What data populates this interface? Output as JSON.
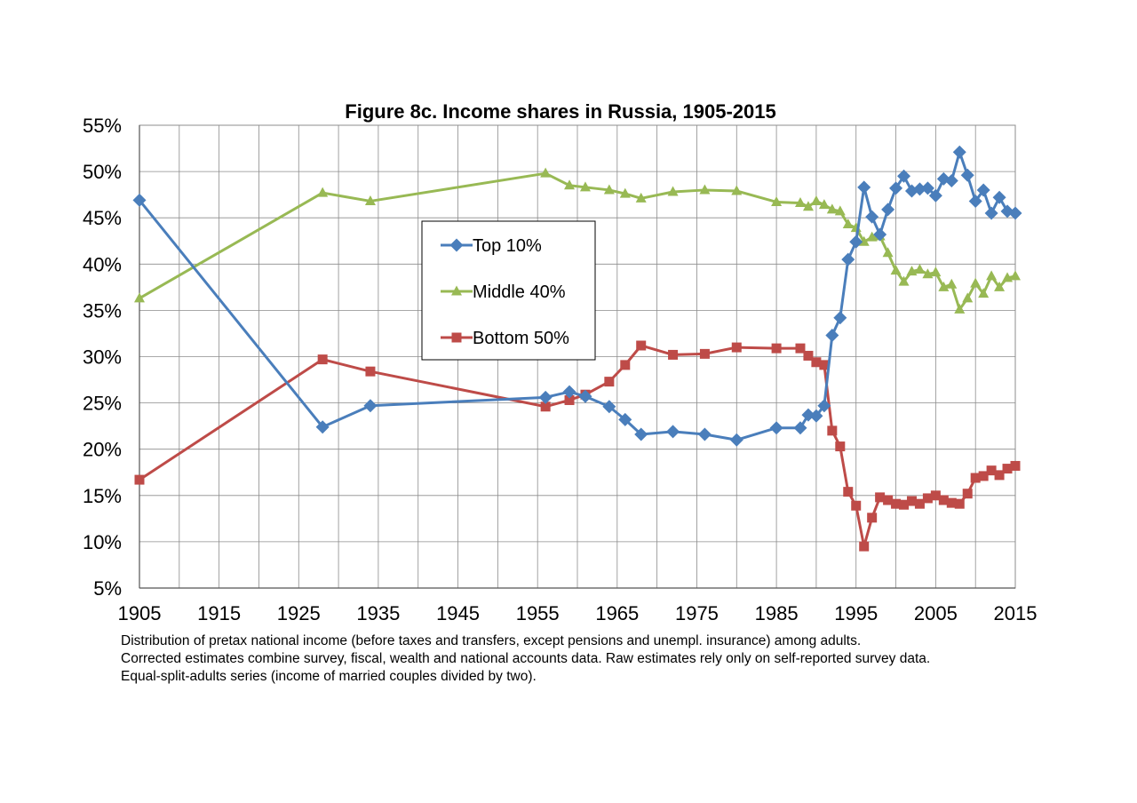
{
  "chart_data": {
    "type": "line",
    "title": "Figure 8c. Income shares in Russia, 1905-2015",
    "xlabel": "",
    "ylabel": "",
    "xlim": [
      1905,
      2015
    ],
    "ylim": [
      5,
      55
    ],
    "x_ticks": [
      "1905",
      "1915",
      "1925",
      "1935",
      "1945",
      "1955",
      "1965",
      "1975",
      "1985",
      "1995",
      "2005",
      "2015"
    ],
    "y_ticks": [
      "5%",
      "10%",
      "15%",
      "20%",
      "25%",
      "30%",
      "35%",
      "40%",
      "45%",
      "50%",
      "55%"
    ],
    "grid": true,
    "legend_position": "center-left",
    "series": [
      {
        "name": "Top 10%",
        "color": "#4a7ebb",
        "marker": "diamond",
        "points": [
          [
            1905,
            46.9
          ],
          [
            1928,
            22.4
          ],
          [
            1934,
            24.7
          ],
          [
            1956,
            25.6
          ],
          [
            1959,
            26.2
          ],
          [
            1961,
            25.7
          ],
          [
            1964,
            24.6
          ],
          [
            1966,
            23.2
          ],
          [
            1968,
            21.6
          ],
          [
            1972,
            21.9
          ],
          [
            1976,
            21.6
          ],
          [
            1980,
            21.0
          ],
          [
            1985,
            22.3
          ],
          [
            1988,
            22.3
          ],
          [
            1989,
            23.7
          ],
          [
            1990,
            23.6
          ],
          [
            1991,
            24.7
          ],
          [
            1992,
            32.3
          ],
          [
            1993,
            34.2
          ],
          [
            1994,
            40.5
          ],
          [
            1995,
            42.4
          ],
          [
            1996,
            48.3
          ],
          [
            1997,
            45.1
          ],
          [
            1998,
            43.2
          ],
          [
            1999,
            45.9
          ],
          [
            2000,
            48.2
          ],
          [
            2001,
            49.5
          ],
          [
            2002,
            47.9
          ],
          [
            2003,
            48.1
          ],
          [
            2004,
            48.2
          ],
          [
            2005,
            47.4
          ],
          [
            2006,
            49.2
          ],
          [
            2007,
            49.0
          ],
          [
            2008,
            52.1
          ],
          [
            2009,
            49.6
          ],
          [
            2010,
            46.8
          ],
          [
            2011,
            48.0
          ],
          [
            2012,
            45.5
          ],
          [
            2013,
            47.2
          ],
          [
            2014,
            45.7
          ],
          [
            2015,
            45.5
          ]
        ]
      },
      {
        "name": "Middle 40%",
        "color": "#98b954",
        "marker": "triangle",
        "points": [
          [
            1905,
            36.3
          ],
          [
            1928,
            47.7
          ],
          [
            1934,
            46.8
          ],
          [
            1956,
            49.8
          ],
          [
            1959,
            48.5
          ],
          [
            1961,
            48.3
          ],
          [
            1964,
            48.0
          ],
          [
            1966,
            47.6
          ],
          [
            1968,
            47.1
          ],
          [
            1972,
            47.8
          ],
          [
            1976,
            48.0
          ],
          [
            1980,
            47.9
          ],
          [
            1985,
            46.7
          ],
          [
            1988,
            46.6
          ],
          [
            1989,
            46.2
          ],
          [
            1990,
            46.8
          ],
          [
            1991,
            46.4
          ],
          [
            1992,
            45.9
          ],
          [
            1993,
            45.7
          ],
          [
            1994,
            44.3
          ],
          [
            1995,
            43.9
          ],
          [
            1996,
            42.4
          ],
          [
            1997,
            42.9
          ],
          [
            1998,
            43.0
          ],
          [
            1999,
            41.2
          ],
          [
            2000,
            39.3
          ],
          [
            2001,
            38.1
          ],
          [
            2002,
            39.2
          ],
          [
            2003,
            39.4
          ],
          [
            2004,
            38.9
          ],
          [
            2005,
            39.1
          ],
          [
            2006,
            37.5
          ],
          [
            2007,
            37.8
          ],
          [
            2008,
            35.1
          ],
          [
            2009,
            36.3
          ],
          [
            2010,
            37.9
          ],
          [
            2011,
            36.8
          ],
          [
            2012,
            38.7
          ],
          [
            2013,
            37.5
          ],
          [
            2014,
            38.5
          ],
          [
            2015,
            38.7
          ]
        ]
      },
      {
        "name": "Bottom 50%",
        "color": "#be4b48",
        "marker": "square",
        "points": [
          [
            1905,
            16.7
          ],
          [
            1928,
            29.7
          ],
          [
            1934,
            28.4
          ],
          [
            1956,
            24.6
          ],
          [
            1959,
            25.3
          ],
          [
            1961,
            25.9
          ],
          [
            1964,
            27.3
          ],
          [
            1966,
            29.1
          ],
          [
            1968,
            31.2
          ],
          [
            1972,
            30.2
          ],
          [
            1976,
            30.3
          ],
          [
            1980,
            31.0
          ],
          [
            1985,
            30.9
          ],
          [
            1988,
            30.9
          ],
          [
            1989,
            30.1
          ],
          [
            1990,
            29.4
          ],
          [
            1991,
            29.1
          ],
          [
            1992,
            22.0
          ],
          [
            1993,
            20.3
          ],
          [
            1994,
            15.4
          ],
          [
            1995,
            13.9
          ],
          [
            1996,
            9.5
          ],
          [
            1997,
            12.6
          ],
          [
            1998,
            14.8
          ],
          [
            1999,
            14.5
          ],
          [
            2000,
            14.1
          ],
          [
            2001,
            14.0
          ],
          [
            2002,
            14.4
          ],
          [
            2003,
            14.1
          ],
          [
            2004,
            14.7
          ],
          [
            2005,
            15.0
          ],
          [
            2006,
            14.5
          ],
          [
            2007,
            14.2
          ],
          [
            2008,
            14.1
          ],
          [
            2009,
            15.2
          ],
          [
            2010,
            16.9
          ],
          [
            2011,
            17.1
          ],
          [
            2012,
            17.7
          ],
          [
            2013,
            17.2
          ],
          [
            2014,
            17.9
          ],
          [
            2015,
            18.2
          ]
        ]
      }
    ]
  },
  "notes": [
    "Distribution of pretax national income (before taxes and transfers, except pensions and unempl. insurance) among adults.",
    "Corrected estimates combine survey, fiscal, wealth and national accounts data. Raw estimates rely only on self-reported survey data.",
    "Equal-split-adults series (income of married couples divided by two)."
  ]
}
